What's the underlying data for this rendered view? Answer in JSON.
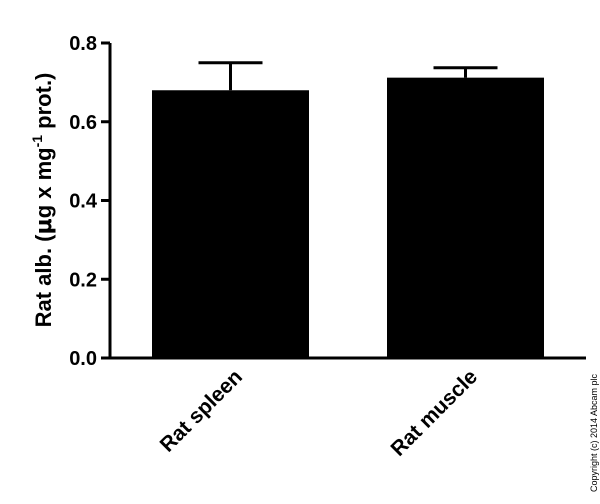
{
  "chart_data": {
    "type": "bar",
    "categories": [
      "Rat spleen",
      "Rat muscle"
    ],
    "values": [
      0.68,
      0.712
    ],
    "error_upper": [
      0.75,
      0.737
    ],
    "ylim": [
      0.0,
      0.8
    ],
    "yticks": [
      "0.0",
      "0.2",
      "0.4",
      "0.6",
      "0.8"
    ],
    "ylabel": {
      "prefix": "Rat alb. (",
      "mu": "μ",
      "middle": "g x mg",
      "sup": "-1",
      "suffix": " prot.)"
    },
    "bar_color": "#000000",
    "grid": false,
    "legend": "none"
  },
  "copyright": "Copyright (c) 2014 Abcam plc"
}
